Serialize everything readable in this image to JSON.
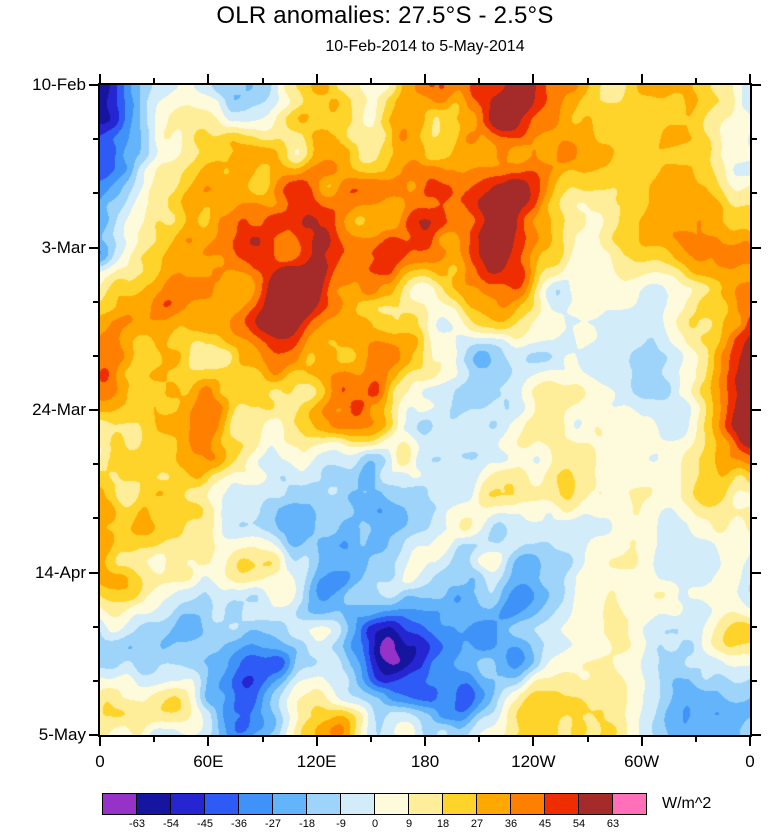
{
  "chart_data": {
    "type": "heatmap",
    "title": "OLR anomalies: 27.5°S - 2.5°S",
    "subtitle": "10-Feb-2014 to 5-May-2014",
    "x_axis": {
      "tick_labels": [
        "0",
        "60E",
        "120E",
        "180",
        "120W",
        "60W",
        "0"
      ],
      "minor_ticks_per_interval": 1
    },
    "y_axis": {
      "tick_labels": [
        "10-Feb",
        "3-Mar",
        "24-Mar",
        "14-Apr",
        "5-May"
      ],
      "minor_ticks_per_interval": 2
    },
    "colorbar": {
      "unit": "W/m^2",
      "levels": [
        -63,
        -54,
        -45,
        -36,
        -27,
        -18,
        -9,
        0,
        9,
        18,
        27,
        36,
        45,
        54,
        63
      ],
      "colors": [
        "#9632C8",
        "#1515A0",
        "#2525D2",
        "#2E5BF5",
        "#3F93F8",
        "#63B4FA",
        "#9ED4FA",
        "#D2ECFA",
        "#FEFBDC",
        "#FFEE99",
        "#FFD42A",
        "#FFA800",
        "#FF7F00",
        "#EE2E00",
        "#A52A2A",
        "#FF70B8"
      ]
    }
  }
}
